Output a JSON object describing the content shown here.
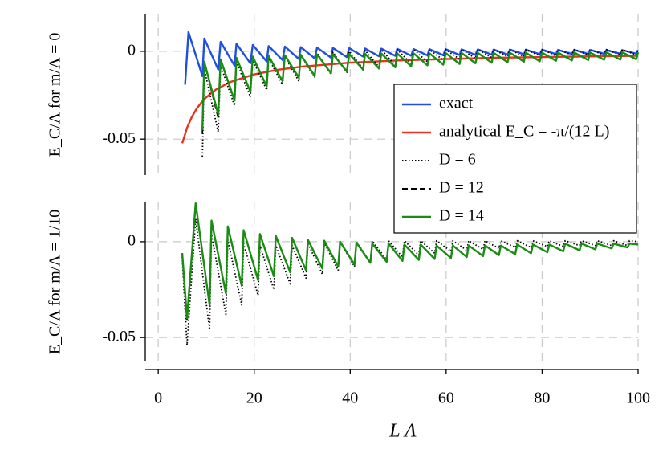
{
  "chart_data": [
    {
      "type": "line",
      "ylabel": "E_C/Λ for m/Λ = 0",
      "xlim": [
        -2.7,
        100
      ],
      "xticks": [
        0,
        20,
        40,
        60,
        80,
        100
      ],
      "ylim": [
        -0.0705,
        0.021
      ],
      "yticks": [
        0,
        -0.05
      ],
      "grid": true,
      "legend": "right",
      "x": [
        5.6,
        6.3,
        9.2,
        9.6,
        12.5,
        13,
        15.9,
        16.3,
        19.2,
        19.7,
        22.6,
        23,
        25.9,
        26.4,
        29.3,
        29.7,
        32.6,
        33.1,
        36,
        36.4,
        39.3,
        39.8,
        42.7,
        43.1,
        46,
        46.5,
        49.4,
        49.8,
        52.7,
        53.2,
        56.1,
        56.5,
        59.4,
        59.9,
        62.8,
        63.2,
        66.1,
        66.6,
        69.5,
        69.9,
        72.8,
        73.3,
        76.2,
        76.6,
        79.5,
        80,
        82.9,
        83.3,
        86.2,
        86.7,
        89.6,
        90,
        92.9,
        93.4,
        96.3,
        96.7,
        99.6,
        100
      ],
      "series": [
        {
          "name": "exact",
          "color": "#1f4fe0",
          "dash": "solid",
          "values": [
            -0.019,
            0.011,
            -0.0141,
            0.0073,
            -0.0104,
            0.0054,
            -0.0082,
            0.0043,
            -0.0068,
            0.0036,
            -0.0058,
            0.003,
            -0.005,
            0.0027,
            -0.0044,
            0.0024,
            -0.004,
            0.0021,
            -0.0036,
            0.0019,
            -0.0033,
            0.0018,
            -0.003,
            0.0016,
            -0.0028,
            0.0015,
            -0.0026,
            0.0014,
            -0.0025,
            0.0013,
            -0.0023,
            0.0012,
            -0.0022,
            0.0012,
            -0.0021,
            0.0011,
            -0.002,
            0.0011,
            -0.0019,
            0.001,
            -0.0018,
            0.001,
            -0.0017,
            0.0009,
            -0.0016,
            0.0009,
            -0.0016,
            0.0008,
            -0.0015,
            0.0008,
            -0.0015,
            0.0008,
            -0.0014,
            0.0007,
            -0.0014,
            0.0007,
            -0.0013,
            0.0007
          ]
        },
        {
          "name": "analytical E_C = -π/(12 L)",
          "color": "#e8331c",
          "dash": "solid",
          "x": [
            5,
            6,
            7,
            8,
            9,
            10,
            12,
            15,
            20,
            25,
            30,
            40,
            50,
            60,
            70,
            80,
            90,
            100
          ],
          "values": [
            -0.0524,
            -0.0436,
            -0.0374,
            -0.0327,
            -0.0291,
            -0.0262,
            -0.0218,
            -0.0175,
            -0.0131,
            -0.0105,
            -0.0087,
            -0.0065,
            -0.0052,
            -0.0044,
            -0.0037,
            -0.0033,
            -0.0029,
            -0.0026
          ]
        },
        {
          "name": "D = 6",
          "color": "#000000",
          "dash": "dotted",
          "values": [
            null,
            null,
            -0.06,
            -0.01,
            -0.046,
            -0.008,
            -0.031,
            -0.006,
            -0.026,
            -0.005,
            -0.022,
            -0.004,
            -0.019,
            -0.003,
            -0.017,
            -0.002,
            -0.015,
            -0.001,
            -0.013,
            -0.0005,
            -0.012,
            0,
            -0.01,
            0.0005,
            -0.009,
            0.001,
            -0.008,
            0.001,
            -0.007,
            0.001,
            -0.006,
            0.001,
            -0.005,
            0.001,
            -0.0045,
            0.001,
            -0.004,
            0.001,
            -0.0035,
            0.001,
            -0.003,
            0.001,
            -0.003,
            0.001,
            -0.0025,
            0.001,
            -0.0025,
            0.001,
            -0.002,
            0.001,
            -0.002,
            0.001,
            -0.002,
            0.001,
            -0.002,
            0.001,
            -0.002,
            0.001
          ]
        },
        {
          "name": "D = 12",
          "color": "#000000",
          "dash": "dashed",
          "values": [
            null,
            null,
            -0.047,
            -0.006,
            -0.038,
            -0.0046,
            -0.028,
            -0.0037,
            -0.023,
            -0.003,
            -0.02,
            -0.0026,
            -0.017,
            -0.0023,
            -0.015,
            -0.002,
            -0.014,
            -0.0018,
            -0.0125,
            -0.0016,
            -0.0115,
            -0.0015,
            -0.0105,
            -0.0014,
            -0.0098,
            -0.0013,
            -0.0091,
            -0.0012,
            -0.0085,
            -0.0011,
            -0.008,
            -0.0011,
            -0.0076,
            -0.001,
            -0.0072,
            -0.0009,
            -0.0068,
            -0.0009,
            -0.0065,
            -0.0009,
            -0.0062,
            -0.0008,
            -0.0059,
            -0.0008,
            -0.0057,
            -0.0008,
            -0.0054,
            -0.0007,
            -0.0052,
            -0.0007,
            -0.005,
            -0.0007,
            -0.0048,
            -0.0006,
            -0.0047,
            -0.0006,
            -0.0045,
            -0.0006
          ]
        },
        {
          "name": "D = 14",
          "color": "#1a8c14",
          "dash": "solid",
          "values": [
            null,
            null,
            -0.045,
            -0.006,
            -0.036,
            -0.0046,
            -0.028,
            -0.0037,
            -0.023,
            -0.003,
            -0.02,
            -0.0026,
            -0.017,
            -0.0023,
            -0.015,
            -0.002,
            -0.014,
            -0.0018,
            -0.0125,
            -0.0016,
            -0.0115,
            -0.0015,
            -0.0105,
            -0.0014,
            -0.0098,
            -0.0013,
            -0.0091,
            -0.0012,
            -0.0085,
            -0.0011,
            -0.008,
            -0.0011,
            -0.0076,
            -0.001,
            -0.0072,
            -0.0009,
            -0.0068,
            -0.0009,
            -0.0065,
            -0.0009,
            -0.0062,
            -0.0008,
            -0.0059,
            -0.0008,
            -0.0057,
            -0.0008,
            -0.0054,
            -0.0007,
            -0.0052,
            -0.0007,
            -0.005,
            -0.0007,
            -0.0048,
            -0.0006,
            -0.0047,
            -0.0006,
            -0.0045,
            -0.0006
          ]
        }
      ]
    },
    {
      "type": "line",
      "ylabel": "E_C/Λ for m/Λ = 1/10",
      "xlabel": "L Λ",
      "xlim": [
        -2.7,
        100
      ],
      "xticks": [
        0,
        20,
        40,
        60,
        80,
        100
      ],
      "ylim": [
        -0.0625,
        0.0205
      ],
      "yticks": [
        0,
        -0.05
      ],
      "grid": true,
      "x": [
        5,
        6,
        7.8,
        10.7,
        11.1,
        14.1,
        14.5,
        17.4,
        17.8,
        20.8,
        21.2,
        24.1,
        24.5,
        27.5,
        27.9,
        30.8,
        31.2,
        34.2,
        34.6,
        37.5,
        37.9,
        40.9,
        41.3,
        44.2,
        44.6,
        47.6,
        48,
        50.9,
        51.3,
        54.3,
        54.7,
        57.6,
        58,
        61,
        61.4,
        64.3,
        64.7,
        67.7,
        68.1,
        71,
        71.4,
        74.4,
        74.8,
        77.7,
        78.1,
        81.1,
        81.5,
        84.4,
        84.8,
        87.8,
        88.2,
        91.1,
        91.5,
        94.5,
        94.9,
        97.8,
        98.2,
        100
      ],
      "series": [
        {
          "color": "#000000",
          "dash": "dotted",
          "values": [
            -0.008,
            -0.054,
            0.012,
            -0.046,
            0.004,
            -0.038,
            0.001,
            -0.033,
            -0.001,
            -0.028,
            -0.002,
            -0.025,
            -0.002,
            -0.022,
            -0.002,
            -0.019,
            -0.001,
            -0.017,
            -0.0005,
            -0.015,
            0,
            -0.013,
            0,
            -0.011,
            0.0005,
            -0.0095,
            0.0005,
            -0.008,
            0.0005,
            -0.007,
            0.0005,
            -0.006,
            0.0005,
            -0.005,
            0.0005,
            -0.0045,
            0.0005,
            -0.004,
            0.0005,
            -0.0035,
            0.0005,
            -0.003,
            0.0005,
            -0.003,
            0.0005,
            -0.0025,
            0.0005,
            -0.0025,
            0.0005,
            -0.002,
            0.0005,
            -0.002,
            0.0005,
            -0.002,
            0.0005,
            -0.002,
            0.0005,
            0
          ]
        },
        {
          "color": "#000000",
          "dash": "dashed",
          "values": [
            -0.006,
            -0.042,
            0.02,
            -0.033,
            0.011,
            -0.027,
            0.008,
            -0.023,
            0.006,
            -0.02,
            0.004,
            -0.018,
            0.003,
            -0.016,
            0.002,
            -0.015,
            0.001,
            -0.014,
            0.0005,
            -0.013,
            0,
            -0.012,
            -0.0005,
            -0.011,
            -0.001,
            -0.0105,
            -0.001,
            -0.01,
            -0.0015,
            -0.0095,
            -0.0015,
            -0.009,
            -0.002,
            -0.0085,
            -0.002,
            -0.008,
            -0.002,
            -0.0075,
            -0.002,
            -0.007,
            -0.002,
            -0.0065,
            -0.0015,
            -0.006,
            -0.0015,
            -0.0055,
            -0.0015,
            -0.005,
            -0.001,
            -0.0045,
            -0.001,
            -0.004,
            -0.001,
            -0.0035,
            -0.001,
            -0.003,
            -0.001,
            -0.0015
          ]
        },
        {
          "color": "#1a8c14",
          "dash": "solid",
          "values": [
            -0.006,
            -0.04,
            0.02,
            -0.033,
            0.011,
            -0.027,
            0.008,
            -0.023,
            0.006,
            -0.02,
            0.004,
            -0.018,
            0.003,
            -0.016,
            0.002,
            -0.015,
            0.001,
            -0.014,
            0.0005,
            -0.013,
            0,
            -0.012,
            -0.0005,
            -0.011,
            -0.001,
            -0.0105,
            -0.001,
            -0.01,
            -0.0015,
            -0.0095,
            -0.0015,
            -0.009,
            -0.002,
            -0.0085,
            -0.002,
            -0.008,
            -0.002,
            -0.0075,
            -0.002,
            -0.007,
            -0.002,
            -0.0065,
            -0.0015,
            -0.006,
            -0.0015,
            -0.0055,
            -0.0015,
            -0.005,
            -0.001,
            -0.0045,
            -0.001,
            -0.004,
            -0.001,
            -0.0035,
            -0.001,
            -0.003,
            -0.001,
            -0.0015
          ]
        }
      ]
    }
  ]
}
